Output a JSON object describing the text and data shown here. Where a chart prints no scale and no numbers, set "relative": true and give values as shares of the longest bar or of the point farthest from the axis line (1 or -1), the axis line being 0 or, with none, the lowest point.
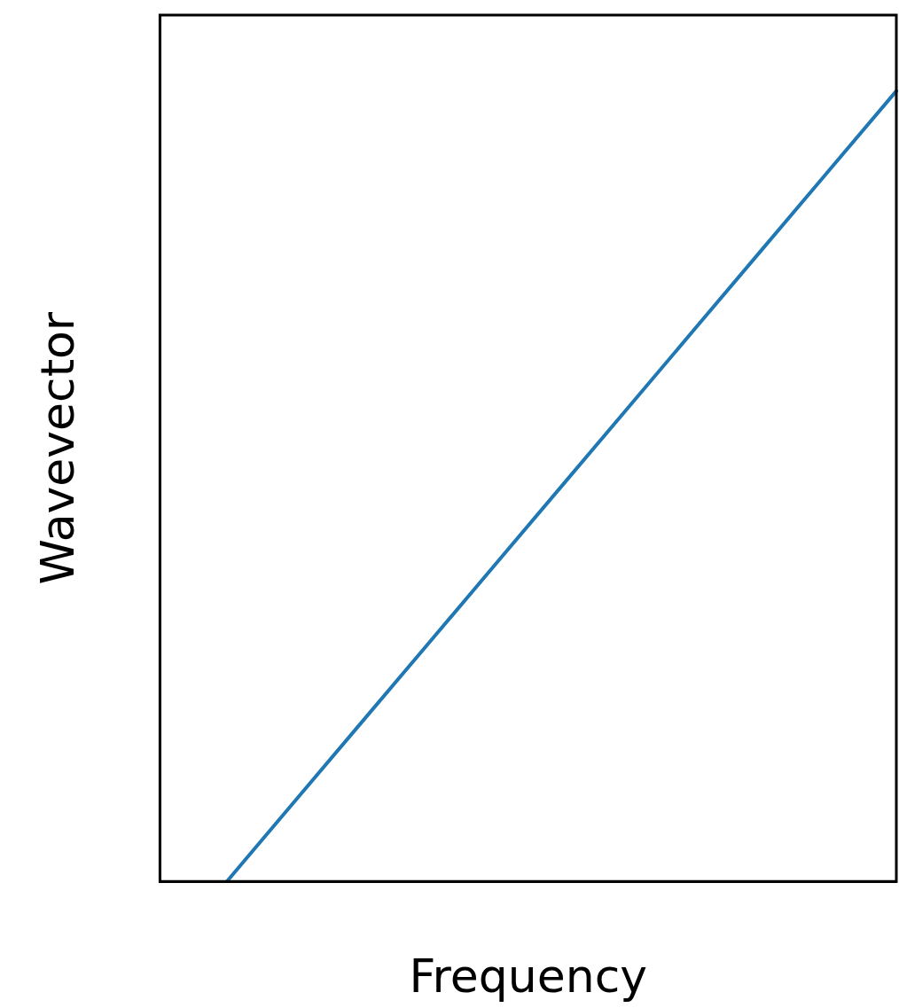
{
  "chart_data": {
    "type": "line",
    "xlabel": "Frequency",
    "ylabel": "Wavevector",
    "relative": true,
    "categories": [
      null,
      null,
      null,
      null,
      null,
      null,
      null,
      null,
      null,
      null,
      null,
      null
    ],
    "series": [
      {
        "color": "#1f77b4",
        "values": [
          null,
          0,
          0.1,
          0.2,
          0.3,
          0.4,
          0.5,
          0.6,
          0.7,
          0.8,
          0.9,
          1
        ]
      }
    ],
    "grid": false,
    "legend": false,
    "marker": "none",
    "line_style": "solid"
  }
}
